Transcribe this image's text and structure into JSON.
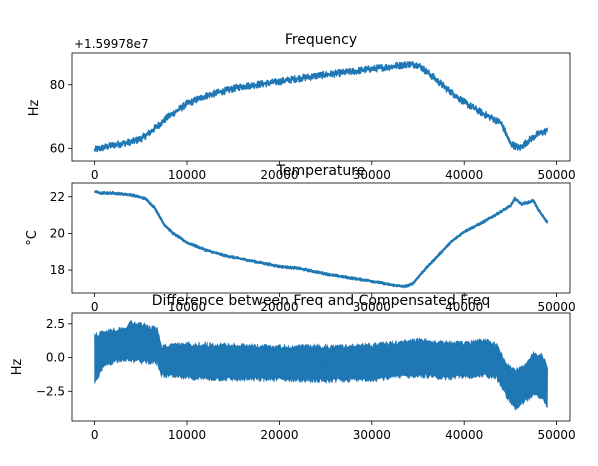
{
  "chart_data": [
    {
      "type": "line",
      "title": "Frequency",
      "xlabel": "",
      "ylabel": "Hz",
      "offset_text": "+1.59978e7",
      "xlim": [
        -2450,
        51450
      ],
      "ylim": [
        56,
        90
      ],
      "xticks": [
        0,
        10000,
        20000,
        30000,
        40000,
        50000
      ],
      "yticks": [
        60,
        80
      ],
      "xtick_labels": [
        "0",
        "10000",
        "20000",
        "30000",
        "40000",
        "50000"
      ],
      "ytick_labels": [
        "60",
        "80"
      ],
      "grid": false,
      "color": "#1f77b4",
      "series": [
        {
          "x": [
            0,
            2000,
            4000,
            5000,
            6000,
            8000,
            10000,
            12000,
            14000,
            16000,
            18000,
            20000,
            22000,
            24000,
            26000,
            28000,
            30000,
            32000,
            34000,
            35000,
            36000,
            38000,
            40000,
            42000,
            44000,
            45000,
            46000,
            47000,
            48000,
            49000
          ],
          "y": [
            59.5,
            61,
            62,
            63,
            65,
            70,
            74,
            76.5,
            78,
            79.5,
            80.2,
            81,
            82,
            82.8,
            83.5,
            84.2,
            85,
            85.7,
            86.5,
            86.3,
            84,
            79,
            74.5,
            71,
            68,
            61.5,
            60,
            62.5,
            64.5,
            65.5
          ],
          "band": 2.2
        }
      ]
    },
    {
      "type": "line",
      "title": "Temperature",
      "xlabel": "",
      "ylabel": "°C",
      "xlim": [
        -2450,
        51450
      ],
      "ylim": [
        16.75,
        22.75
      ],
      "xticks": [
        0,
        10000,
        20000,
        30000,
        40000,
        50000
      ],
      "yticks": [
        18,
        20,
        22
      ],
      "xtick_labels": [
        "0",
        "10000",
        "20000",
        "30000",
        "40000",
        "50000"
      ],
      "ytick_labels": [
        "18",
        "20",
        "22"
      ],
      "grid": false,
      "color": "#1f77b4",
      "series": [
        {
          "x": [
            0,
            500,
            2000,
            4000,
            5500,
            6500,
            7500,
            8500,
            10000,
            12000,
            14000,
            16000,
            18000,
            20000,
            22000,
            24000,
            26000,
            28000,
            30000,
            32000,
            33500,
            34200,
            34500,
            35500,
            37000,
            38500,
            40000,
            42000,
            44000,
            45000,
            45500,
            46200,
            47000,
            47500,
            48000,
            49000
          ],
          "y": [
            22.3,
            22.2,
            22.2,
            22.1,
            21.9,
            21.4,
            20.5,
            20.0,
            19.5,
            19.1,
            18.8,
            18.6,
            18.4,
            18.2,
            18.1,
            17.9,
            17.7,
            17.55,
            17.4,
            17.2,
            17.1,
            17.2,
            17.3,
            17.9,
            18.7,
            19.5,
            20.1,
            20.6,
            21.2,
            21.5,
            21.9,
            21.6,
            21.7,
            21.8,
            21.3,
            20.6
          ],
          "band": 0.15
        }
      ]
    },
    {
      "type": "line",
      "title": "Difference between Freq and Compensated Freq",
      "xlabel": "",
      "ylabel": "Hz",
      "xlim": [
        -2450,
        51450
      ],
      "ylim": [
        -4.7,
        3.3
      ],
      "xticks": [
        0,
        10000,
        20000,
        30000,
        40000,
        50000
      ],
      "yticks": [
        -2.5,
        0.0,
        2.5
      ],
      "xtick_labels": [
        "0",
        "10000",
        "20000",
        "30000",
        "40000",
        "50000"
      ],
      "ytick_labels": [
        "−2.5",
        "0.0",
        "2.5"
      ],
      "grid": false,
      "color": "#1f77b4",
      "series": [
        {
          "x": [
            0,
            1000,
            2000,
            3000,
            4000,
            5000,
            6000,
            6800,
            7200,
            10000,
            15000,
            20000,
            25000,
            30000,
            33000,
            35000,
            38000,
            40000,
            42000,
            43500,
            44500,
            45500,
            46500,
            47500,
            48500,
            49000
          ],
          "upper": [
            1.8,
            2.1,
            2.2,
            2.3,
            2.8,
            2.7,
            2.4,
            2.3,
            1.0,
            1.2,
            1.1,
            1.0,
            1.0,
            1.1,
            1.3,
            1.5,
            1.3,
            1.2,
            1.5,
            1.2,
            -0.3,
            -0.8,
            -0.5,
            0.5,
            0.3,
            -0.5
          ],
          "lower": [
            -2.2,
            -0.8,
            -0.5,
            -0.3,
            -0.4,
            -0.5,
            -0.5,
            -0.6,
            -1.5,
            -1.7,
            -1.8,
            -1.8,
            -1.9,
            -1.8,
            -1.6,
            -1.5,
            -1.7,
            -1.6,
            -1.5,
            -1.7,
            -3.0,
            -4.0,
            -3.4,
            -3.0,
            -3.2,
            -3.8
          ],
          "mean": [
            0.0,
            0.8,
            1.0,
            1.1,
            1.3,
            1.2,
            1.0,
            0.9,
            -0.2,
            -0.3,
            -0.4,
            -0.4,
            -0.5,
            -0.4,
            -0.2,
            0.0,
            -0.2,
            -0.2,
            0.0,
            -0.3,
            -1.6,
            -2.4,
            -2.0,
            -1.2,
            -1.4,
            -2.1
          ]
        }
      ]
    }
  ]
}
